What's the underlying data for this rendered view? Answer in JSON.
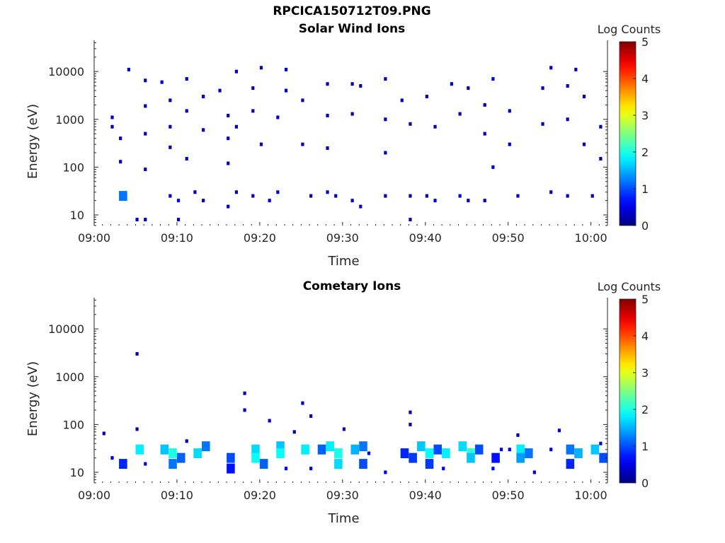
{
  "figure_title": "RPCICA150712T09.PNG",
  "chart_data": [
    {
      "type": "heatmap",
      "title": "Solar Wind Ions",
      "xlabel": "Time",
      "ylabel": "Energy (eV)",
      "x_ticks": [
        "09:00",
        "09:10",
        "09:20",
        "09:30",
        "09:40",
        "09:50",
        "10:00"
      ],
      "x_range": [
        "09:00",
        "10:02"
      ],
      "y_scale": "log",
      "y_ticks": [
        10,
        100,
        1000,
        10000
      ],
      "y_range": [
        6,
        45000
      ],
      "colorbar": {
        "label": "Log Counts",
        "range": [
          0,
          5
        ],
        "ticks": [
          0,
          1,
          2,
          3,
          4,
          5
        ],
        "colormap": "jet"
      },
      "grid": false,
      "cells": [
        {
          "t": "09:02",
          "e": 1100,
          "v": 0.3
        },
        {
          "t": "09:02",
          "e": 700,
          "v": 0.3
        },
        {
          "t": "09:03",
          "e": 400,
          "v": 0.3
        },
        {
          "t": "09:03",
          "e": 130,
          "v": 0.3
        },
        {
          "t": "09:04",
          "e": 11000,
          "v": 0.3
        },
        {
          "t": "09:03",
          "e": 25,
          "v": 1.2
        },
        {
          "t": "09:05",
          "e": 8,
          "v": 0.3
        },
        {
          "t": "09:06",
          "e": 6500,
          "v": 0.3
        },
        {
          "t": "09:06",
          "e": 1900,
          "v": 0.3
        },
        {
          "t": "09:06",
          "e": 500,
          "v": 0.3
        },
        {
          "t": "09:06",
          "e": 90,
          "v": 0.3
        },
        {
          "t": "09:06",
          "e": 8,
          "v": 0.3
        },
        {
          "t": "09:08",
          "e": 6000,
          "v": 0.3
        },
        {
          "t": "09:09",
          "e": 2500,
          "v": 0.3
        },
        {
          "t": "09:09",
          "e": 700,
          "v": 0.3
        },
        {
          "t": "09:09",
          "e": 260,
          "v": 0.3
        },
        {
          "t": "09:09",
          "e": 25,
          "v": 0.4
        },
        {
          "t": "09:10",
          "e": 20,
          "v": 0.5
        },
        {
          "t": "09:10",
          "e": 8,
          "v": 0.3
        },
        {
          "t": "09:11",
          "e": 7000,
          "v": 0.3
        },
        {
          "t": "09:11",
          "e": 1500,
          "v": 0.3
        },
        {
          "t": "09:11",
          "e": 150,
          "v": 0.3
        },
        {
          "t": "09:12",
          "e": 30,
          "v": 0.3
        },
        {
          "t": "09:13",
          "e": 3000,
          "v": 0.3
        },
        {
          "t": "09:13",
          "e": 600,
          "v": 0.3
        },
        {
          "t": "09:13",
          "e": 20,
          "v": 0.3
        },
        {
          "t": "09:15",
          "e": 4000,
          "v": 0.3
        },
        {
          "t": "09:16",
          "e": 1200,
          "v": 0.3
        },
        {
          "t": "09:16",
          "e": 400,
          "v": 0.3
        },
        {
          "t": "09:16",
          "e": 120,
          "v": 0.3
        },
        {
          "t": "09:16",
          "e": 15,
          "v": 0.3
        },
        {
          "t": "09:17",
          "e": 10000,
          "v": 0.3
        },
        {
          "t": "09:17",
          "e": 700,
          "v": 0.3
        },
        {
          "t": "09:17",
          "e": 30,
          "v": 0.3
        },
        {
          "t": "09:19",
          "e": 4500,
          "v": 0.3
        },
        {
          "t": "09:19",
          "e": 1500,
          "v": 0.3
        },
        {
          "t": "09:19",
          "e": 25,
          "v": 0.4
        },
        {
          "t": "09:20",
          "e": 12000,
          "v": 0.3
        },
        {
          "t": "09:20",
          "e": 300,
          "v": 0.3
        },
        {
          "t": "09:21",
          "e": 20,
          "v": 0.3
        },
        {
          "t": "09:22",
          "e": 1100,
          "v": 0.3
        },
        {
          "t": "09:22",
          "e": 30,
          "v": 0.3
        },
        {
          "t": "09:23",
          "e": 11000,
          "v": 0.3
        },
        {
          "t": "09:23",
          "e": 4000,
          "v": 0.3
        },
        {
          "t": "09:25",
          "e": 2500,
          "v": 0.3
        },
        {
          "t": "09:25",
          "e": 300,
          "v": 0.3
        },
        {
          "t": "09:26",
          "e": 25,
          "v": 0.3
        },
        {
          "t": "09:28",
          "e": 5500,
          "v": 0.3
        },
        {
          "t": "09:28",
          "e": 1200,
          "v": 0.3
        },
        {
          "t": "09:28",
          "e": 250,
          "v": 0.3
        },
        {
          "t": "09:28",
          "e": 30,
          "v": 0.4
        },
        {
          "t": "09:29",
          "e": 25,
          "v": 0.4
        },
        {
          "t": "09:31",
          "e": 5500,
          "v": 0.3
        },
        {
          "t": "09:31",
          "e": 1300,
          "v": 0.3
        },
        {
          "t": "09:31",
          "e": 20,
          "v": 0.5
        },
        {
          "t": "09:32",
          "e": 15,
          "v": 0.5
        },
        {
          "t": "09:32",
          "e": 5000,
          "v": 0.3
        },
        {
          "t": "09:35",
          "e": 7000,
          "v": 0.3
        },
        {
          "t": "09:35",
          "e": 1000,
          "v": 0.3
        },
        {
          "t": "09:35",
          "e": 200,
          "v": 0.3
        },
        {
          "t": "09:35",
          "e": 25,
          "v": 0.3
        },
        {
          "t": "09:37",
          "e": 2500,
          "v": 0.3
        },
        {
          "t": "09:38",
          "e": 800,
          "v": 0.3
        },
        {
          "t": "09:38",
          "e": 25,
          "v": 0.3
        },
        {
          "t": "09:38",
          "e": 8,
          "v": 0.3
        },
        {
          "t": "09:40",
          "e": 3000,
          "v": 0.3
        },
        {
          "t": "09:40",
          "e": 25,
          "v": 0.3
        },
        {
          "t": "09:41",
          "e": 700,
          "v": 0.3
        },
        {
          "t": "09:41",
          "e": 20,
          "v": 0.4
        },
        {
          "t": "09:43",
          "e": 5500,
          "v": 0.3
        },
        {
          "t": "09:44",
          "e": 1300,
          "v": 0.3
        },
        {
          "t": "09:44",
          "e": 25,
          "v": 0.5
        },
        {
          "t": "09:45",
          "e": 20,
          "v": 0.4
        },
        {
          "t": "09:45",
          "e": 4500,
          "v": 0.3
        },
        {
          "t": "09:47",
          "e": 2000,
          "v": 0.3
        },
        {
          "t": "09:47",
          "e": 500,
          "v": 0.3
        },
        {
          "t": "09:47",
          "e": 20,
          "v": 0.3
        },
        {
          "t": "09:48",
          "e": 7000,
          "v": 0.3
        },
        {
          "t": "09:48",
          "e": 100,
          "v": 0.3
        },
        {
          "t": "09:50",
          "e": 1500,
          "v": 0.3
        },
        {
          "t": "09:50",
          "e": 300,
          "v": 0.3
        },
        {
          "t": "09:51",
          "e": 25,
          "v": 0.4
        },
        {
          "t": "09:54",
          "e": 4500,
          "v": 0.3
        },
        {
          "t": "09:54",
          "e": 800,
          "v": 0.3
        },
        {
          "t": "09:55",
          "e": 12000,
          "v": 0.3
        },
        {
          "t": "09:55",
          "e": 30,
          "v": 0.3
        },
        {
          "t": "09:57",
          "e": 5000,
          "v": 0.3
        },
        {
          "t": "09:57",
          "e": 1000,
          "v": 0.3
        },
        {
          "t": "09:57",
          "e": 25,
          "v": 0.3
        },
        {
          "t": "09:58",
          "e": 11000,
          "v": 0.3
        },
        {
          "t": "09:59",
          "e": 3000,
          "v": 0.3
        },
        {
          "t": "09:59",
          "e": 300,
          "v": 0.3
        },
        {
          "t": "10:00",
          "e": 25,
          "v": 0.3
        },
        {
          "t": "10:01",
          "e": 700,
          "v": 0.3
        },
        {
          "t": "10:01",
          "e": 150,
          "v": 0.3
        }
      ]
    },
    {
      "type": "heatmap",
      "title": "Cometary Ions",
      "xlabel": "Time",
      "ylabel": "Energy (eV)",
      "x_ticks": [
        "09:00",
        "09:10",
        "09:20",
        "09:30",
        "09:40",
        "09:50",
        "10:00"
      ],
      "x_range": [
        "09:00",
        "10:02"
      ],
      "y_scale": "log",
      "y_ticks": [
        10,
        100,
        1000,
        10000
      ],
      "y_range": [
        6,
        45000
      ],
      "colorbar": {
        "label": "Log Counts",
        "range": [
          0,
          5
        ],
        "ticks": [
          0,
          1,
          2,
          3,
          4,
          5
        ],
        "colormap": "jet"
      },
      "grid": false,
      "cells": [
        {
          "t": "09:01",
          "e": 65,
          "v": 0.3
        },
        {
          "t": "09:02",
          "e": 20,
          "v": 0.4
        },
        {
          "t": "09:03",
          "e": 15,
          "v": 0.8
        },
        {
          "t": "09:05",
          "e": 3000,
          "v": 0.3
        },
        {
          "t": "09:05",
          "e": 80,
          "v": 0.3
        },
        {
          "t": "09:05",
          "e": 30,
          "v": 1.8
        },
        {
          "t": "09:06",
          "e": 15,
          "v": 0.6
        },
        {
          "t": "09:08",
          "e": 30,
          "v": 1.6
        },
        {
          "t": "09:09",
          "e": 25,
          "v": 2.0
        },
        {
          "t": "09:09",
          "e": 15,
          "v": 1.2
        },
        {
          "t": "09:10",
          "e": 20,
          "v": 1.1
        },
        {
          "t": "09:11",
          "e": 45,
          "v": 0.3
        },
        {
          "t": "09:12",
          "e": 25,
          "v": 1.7
        },
        {
          "t": "09:13",
          "e": 35,
          "v": 1.2
        },
        {
          "t": "09:16",
          "e": 20,
          "v": 1.0
        },
        {
          "t": "09:16",
          "e": 12,
          "v": 0.7
        },
        {
          "t": "09:18",
          "e": 450,
          "v": 0.3
        },
        {
          "t": "09:18",
          "e": 200,
          "v": 0.3
        },
        {
          "t": "09:19",
          "e": 30,
          "v": 1.7
        },
        {
          "t": "09:19",
          "e": 20,
          "v": 1.9
        },
        {
          "t": "09:20",
          "e": 15,
          "v": 1.1
        },
        {
          "t": "09:21",
          "e": 120,
          "v": 0.3
        },
        {
          "t": "09:22",
          "e": 35,
          "v": 1.6
        },
        {
          "t": "09:22",
          "e": 25,
          "v": 1.9
        },
        {
          "t": "09:23",
          "e": 12,
          "v": 0.6
        },
        {
          "t": "09:24",
          "e": 70,
          "v": 0.3
        },
        {
          "t": "09:25",
          "e": 280,
          "v": 0.3
        },
        {
          "t": "09:25",
          "e": 30,
          "v": 1.8
        },
        {
          "t": "09:26",
          "e": 150,
          "v": 0.3
        },
        {
          "t": "09:26",
          "e": 12,
          "v": 0.6
        },
        {
          "t": "09:27",
          "e": 30,
          "v": 1.1
        },
        {
          "t": "09:28",
          "e": 35,
          "v": 1.8
        },
        {
          "t": "09:29",
          "e": 25,
          "v": 2.0
        },
        {
          "t": "09:29",
          "e": 15,
          "v": 1.7
        },
        {
          "t": "09:30",
          "e": 80,
          "v": 0.3
        },
        {
          "t": "09:31",
          "e": 30,
          "v": 1.5
        },
        {
          "t": "09:32",
          "e": 35,
          "v": 1.2
        },
        {
          "t": "09:32",
          "e": 15,
          "v": 1.0
        },
        {
          "t": "09:33",
          "e": 25,
          "v": 0.6
        },
        {
          "t": "09:35",
          "e": 10,
          "v": 0.5
        },
        {
          "t": "09:37",
          "e": 25,
          "v": 0.8
        },
        {
          "t": "09:38",
          "e": 180,
          "v": 0.3
        },
        {
          "t": "09:38",
          "e": 100,
          "v": 0.3
        },
        {
          "t": "09:38",
          "e": 20,
          "v": 0.9
        },
        {
          "t": "09:39",
          "e": 35,
          "v": 1.6
        },
        {
          "t": "09:40",
          "e": 25,
          "v": 1.9
        },
        {
          "t": "09:40",
          "e": 15,
          "v": 0.9
        },
        {
          "t": "09:41",
          "e": 30,
          "v": 1.0
        },
        {
          "t": "09:42",
          "e": 25,
          "v": 1.8
        },
        {
          "t": "09:42",
          "e": 12,
          "v": 0.6
        },
        {
          "t": "09:44",
          "e": 35,
          "v": 1.7
        },
        {
          "t": "09:45",
          "e": 25,
          "v": 2.1
        },
        {
          "t": "09:45",
          "e": 20,
          "v": 1.6
        },
        {
          "t": "09:46",
          "e": 30,
          "v": 1.0
        },
        {
          "t": "09:48",
          "e": 20,
          "v": 0.7
        },
        {
          "t": "09:48",
          "e": 12,
          "v": 0.6
        },
        {
          "t": "09:49",
          "e": 30,
          "v": 0.4
        },
        {
          "t": "09:50",
          "e": 30,
          "v": 0.5
        },
        {
          "t": "09:51",
          "e": 60,
          "v": 0.3
        },
        {
          "t": "09:51",
          "e": 30,
          "v": 1.8
        },
        {
          "t": "09:51",
          "e": 20,
          "v": 1.4
        },
        {
          "t": "09:52",
          "e": 25,
          "v": 1.2
        },
        {
          "t": "09:53",
          "e": 10,
          "v": 0.4
        },
        {
          "t": "09:55",
          "e": 30,
          "v": 0.4
        },
        {
          "t": "09:56",
          "e": 75,
          "v": 0.3
        },
        {
          "t": "09:57",
          "e": 30,
          "v": 1.2
        },
        {
          "t": "09:57",
          "e": 15,
          "v": 0.8
        },
        {
          "t": "09:58",
          "e": 25,
          "v": 1.5
        },
        {
          "t": "10:00",
          "e": 30,
          "v": 1.6
        },
        {
          "t": "10:01",
          "e": 20,
          "v": 1.0
        },
        {
          "t": "10:01",
          "e": 40,
          "v": 0.5
        }
      ]
    }
  ]
}
